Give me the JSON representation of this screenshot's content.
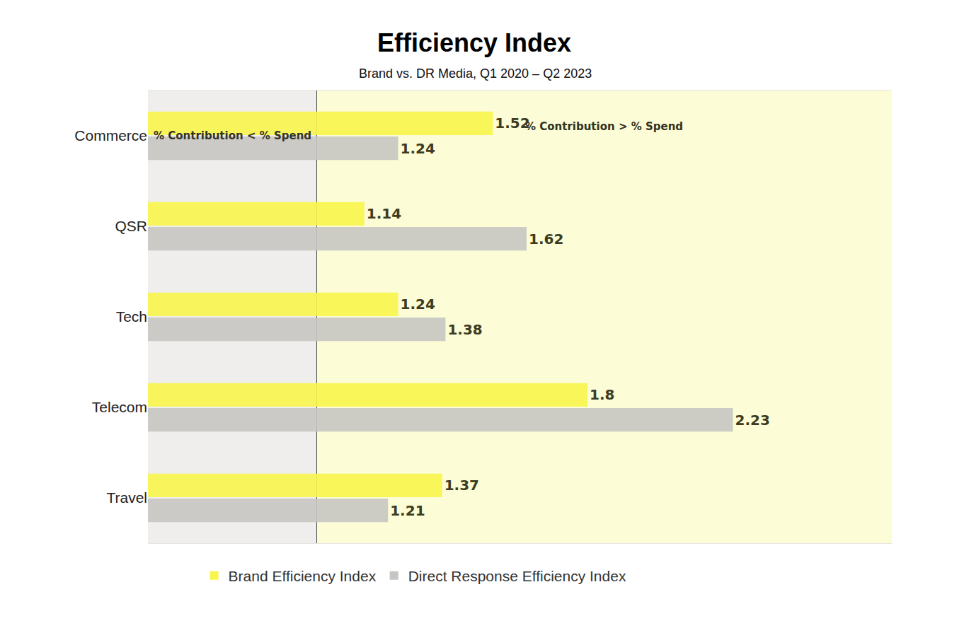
{
  "chart_data": {
    "type": "bar",
    "title": "Efficiency Index",
    "subtitle": "Brand vs. DR Media, Q1 2020 – Q2 2023",
    "orientation": "horizontal",
    "categories": [
      "Commerce",
      "QSR",
      "Tech",
      "Telecom",
      "Travel"
    ],
    "series": [
      {
        "name": "Brand Efficiency Index",
        "color": "#f8f54c",
        "values": [
          1.52,
          1.14,
          1.24,
          1.8,
          1.37
        ]
      },
      {
        "name": "Direct Response Efficiency Index",
        "color": "#c6c5c2",
        "values": [
          1.24,
          1.62,
          1.38,
          2.23,
          1.21
        ]
      }
    ],
    "xlim": [
      0.5,
      2.7
    ],
    "xticks": [
      1
    ],
    "grid": true,
    "tick_labels": "y",
    "data_labels": true,
    "legend": "bottom",
    "annotations": [
      "% Contribution < % Spend",
      "% Contribution > % Spend"
    ]
  }
}
